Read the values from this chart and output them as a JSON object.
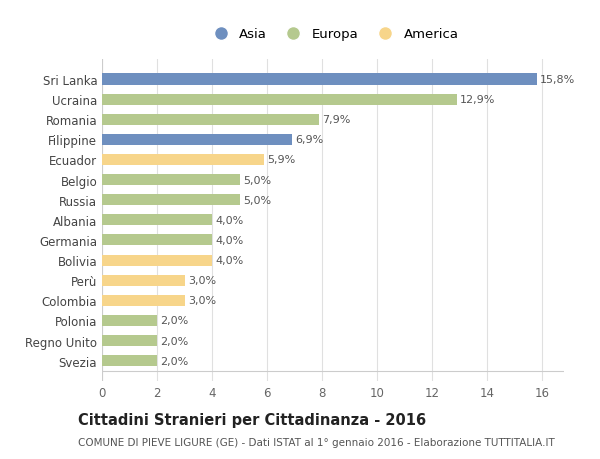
{
  "categories": [
    "Sri Lanka",
    "Ucraina",
    "Romania",
    "Filippine",
    "Ecuador",
    "Belgio",
    "Russia",
    "Albania",
    "Germania",
    "Bolivia",
    "Perù",
    "Colombia",
    "Polonia",
    "Regno Unito",
    "Svezia"
  ],
  "values": [
    15.8,
    12.9,
    7.9,
    6.9,
    5.9,
    5.0,
    5.0,
    4.0,
    4.0,
    4.0,
    3.0,
    3.0,
    2.0,
    2.0,
    2.0
  ],
  "labels": [
    "15,8%",
    "12,9%",
    "7,9%",
    "6,9%",
    "5,9%",
    "5,0%",
    "5,0%",
    "4,0%",
    "4,0%",
    "4,0%",
    "3,0%",
    "3,0%",
    "2,0%",
    "2,0%",
    "2,0%"
  ],
  "continents": [
    "Asia",
    "Europa",
    "Europa",
    "Asia",
    "America",
    "Europa",
    "Europa",
    "Europa",
    "Europa",
    "America",
    "America",
    "America",
    "Europa",
    "Europa",
    "Europa"
  ],
  "colors": {
    "Asia": "#6e8fbf",
    "Europa": "#b5c98e",
    "America": "#f7d58a"
  },
  "title": "Cittadini Stranieri per Cittadinanza - 2016",
  "subtitle": "COMUNE DI PIEVE LIGURE (GE) - Dati ISTAT al 1° gennaio 2016 - Elaborazione TUTTITALIA.IT",
  "xlim": [
    0,
    16.8
  ],
  "xticks": [
    0,
    2,
    4,
    6,
    8,
    10,
    12,
    14,
    16
  ],
  "bg_color": "#ffffff",
  "grid_color": "#e0e0e0",
  "bar_height": 0.55,
  "label_fontsize": 8,
  "tick_fontsize": 8.5,
  "title_fontsize": 10.5,
  "subtitle_fontsize": 7.5
}
